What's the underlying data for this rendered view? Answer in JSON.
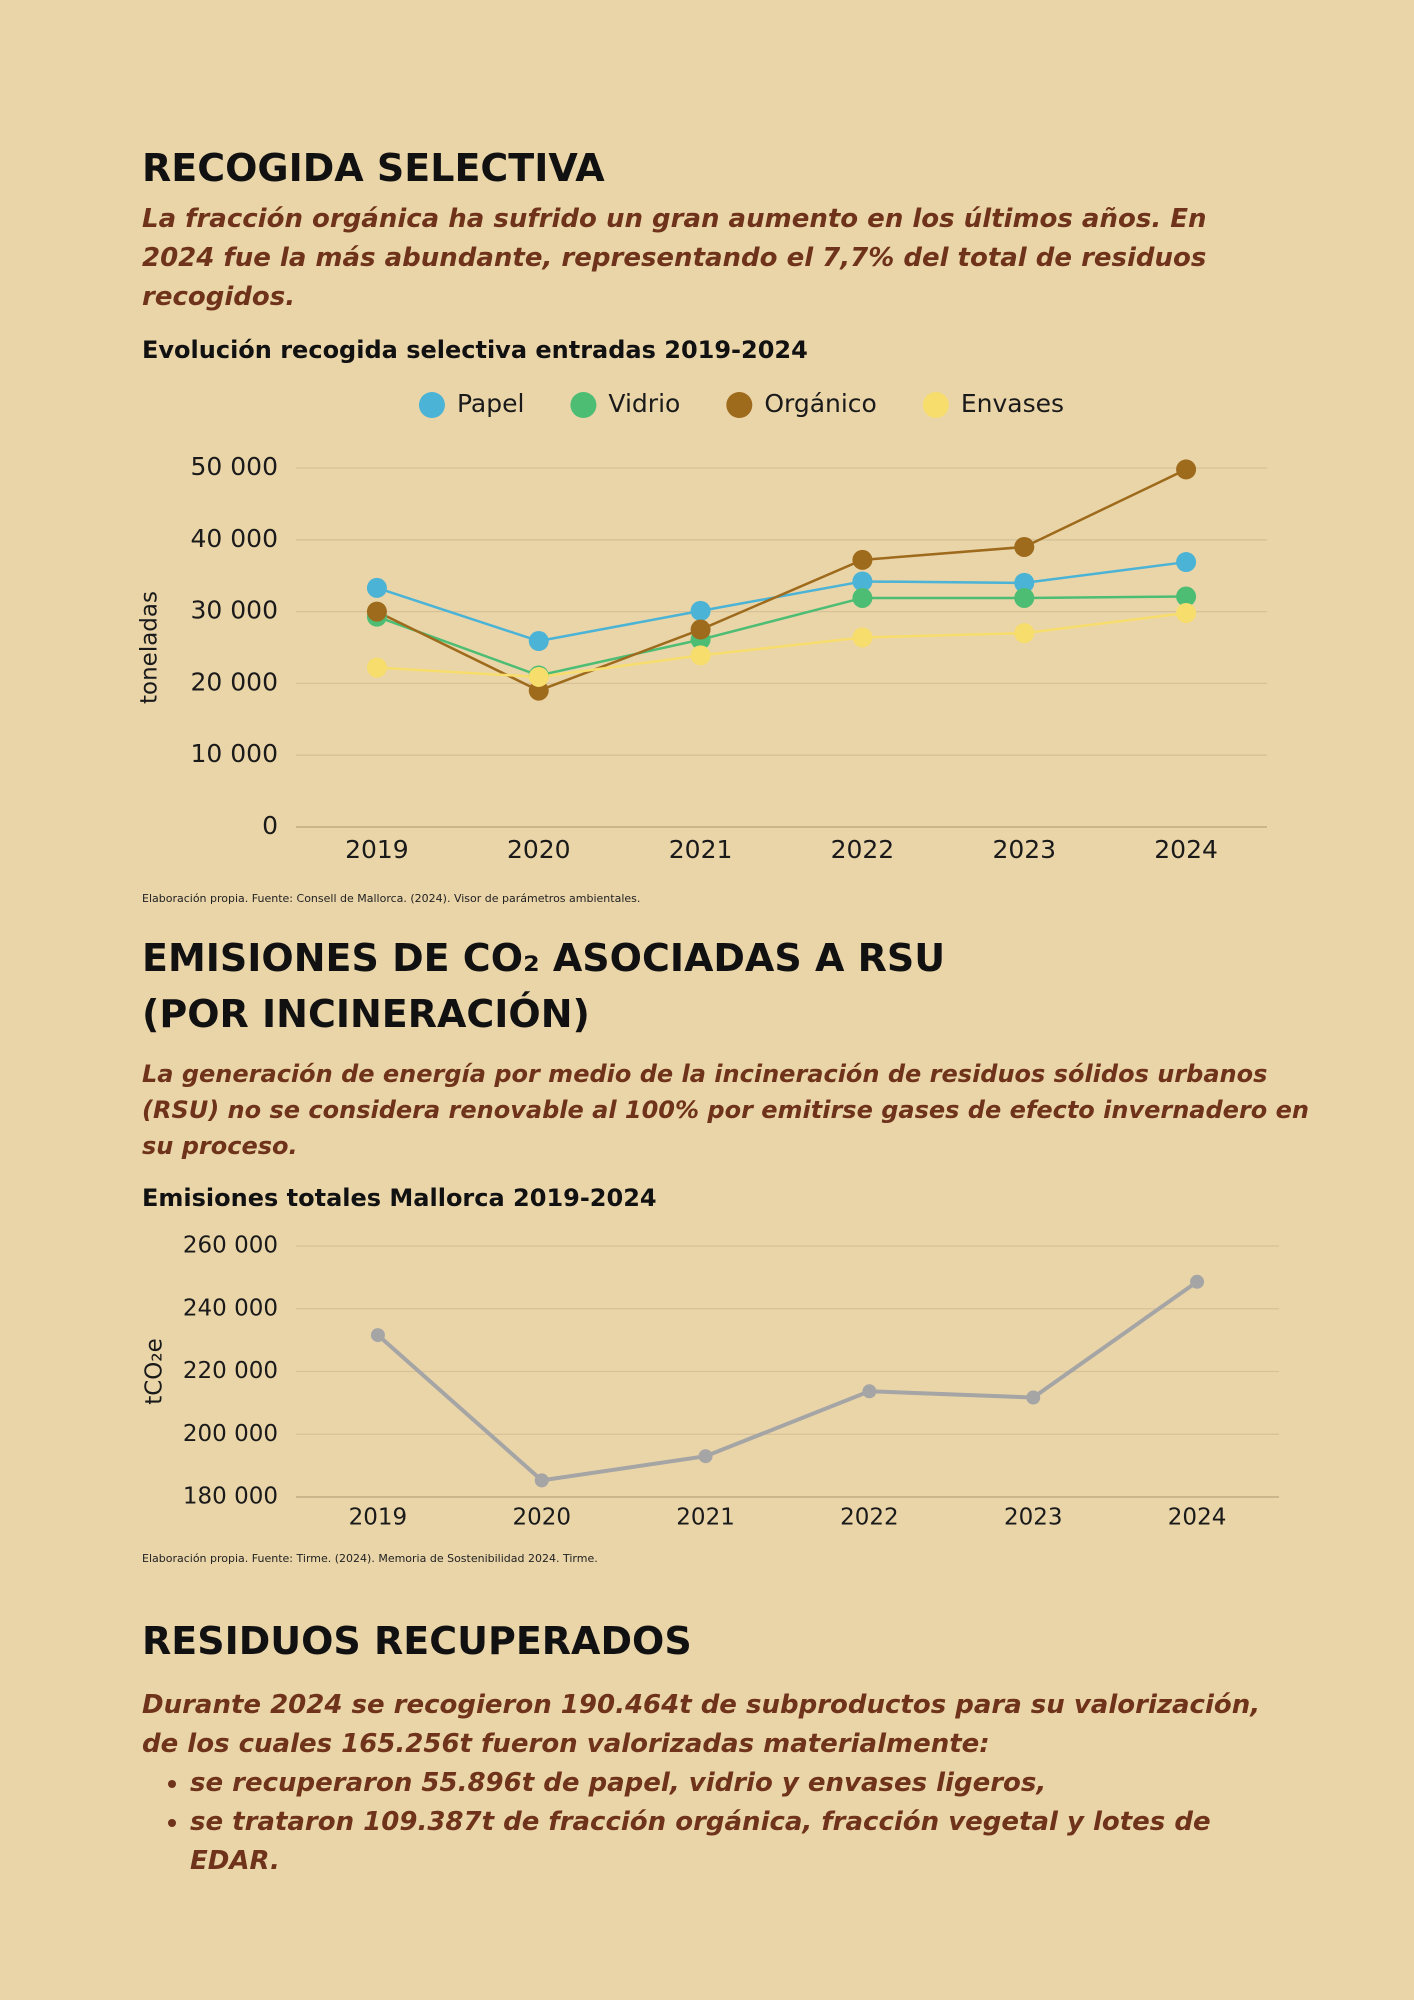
{
  "section_1": {
    "title": "RECOGIDA SELECTIVA",
    "lead": "La fracción orgánica ha sufrido un gran aumento en los últimos años. En 2024 fue la más abundante, representando el 7,7% del total de residuos recogidos."
  },
  "section_2": {
    "title": "EMISIONES DE CO₂ ASOCIADAS A RSU (POR  INCINERACIÓN)",
    "lead": "La generación de energía por medio de la incineración de residuos sólidos urbanos (RSU) no se considera renovable al 100% por emitirse gases de efecto invernadero en su proceso."
  },
  "section_3": {
    "title": "RESIDUOS RECUPERADOS",
    "lead": "Durante 2024 se recogieron 190.464t de subproductos para su valorización, de los cuales 165.256t fueron valorizadas materialmente:",
    "bullets": [
      "se recuperaron 55.896t de papel, vidrio y envases ligeros,",
      "se trataron 109.387t de fracción orgánica, fracción vegetal y lotes de EDAR."
    ]
  },
  "chart_data": [
    {
      "type": "line",
      "title": "Evolución recogida selectiva entradas 2019-2024",
      "ylabel": "toneladas",
      "source": "Elaboración propia. Fuente: Consell de Mallorca. (2024). Visor de parámetros ambientales.",
      "categories": [
        "2019",
        "2020",
        "2021",
        "2022",
        "2023",
        "2024"
      ],
      "series": [
        {
          "name": "Papel",
          "color": "#4ab3d6",
          "values": [
            33300,
            25900,
            30100,
            34200,
            34000,
            36900
          ]
        },
        {
          "name": "Vidrio",
          "color": "#4dbd74",
          "values": [
            29300,
            21100,
            26100,
            31900,
            31900,
            32100
          ]
        },
        {
          "name": "Orgánico",
          "color": "#9e6a1c",
          "values": [
            30000,
            19000,
            27500,
            37200,
            39000,
            49800
          ]
        },
        {
          "name": "Envases",
          "color": "#f7dd6c",
          "values": [
            22200,
            20900,
            23900,
            26400,
            27000,
            29800
          ]
        }
      ],
      "ylim": [
        0,
        50000
      ],
      "yticks": [
        0,
        {
          "value": 10000,
          "label": "10 000"
        },
        {
          "value": 20000,
          "label": "20 000"
        },
        {
          "value": 30000,
          "label": "30 000"
        },
        {
          "value": 40000,
          "label": "40 000"
        },
        {
          "value": 50000,
          "label": "50 000"
        }
      ],
      "grid": true,
      "legend": "top"
    },
    {
      "type": "line",
      "title": "Emisiones totales Mallorca 2019-2024",
      "ylabel": "tCO₂e",
      "source": "Elaboración propia. Fuente: Tirme. (2024). Memoria de Sostenibilidad 2024. Tirme.",
      "categories": [
        "2019",
        "2020",
        "2021",
        "2022",
        "2023",
        "2024"
      ],
      "values": [
        231600,
        185300,
        193000,
        213700,
        211700,
        248600
      ],
      "color": "#a5a5a5",
      "ylim": [
        180000,
        260000
      ],
      "yticks": [
        {
          "value": 180000,
          "label": "180 000"
        },
        {
          "value": 200000,
          "label": "200 000"
        },
        {
          "value": 220000,
          "label": "220 000"
        },
        {
          "value": 240000,
          "label": "240 000"
        },
        {
          "value": 260000,
          "label": "260 000"
        }
      ],
      "grid": true
    }
  ]
}
